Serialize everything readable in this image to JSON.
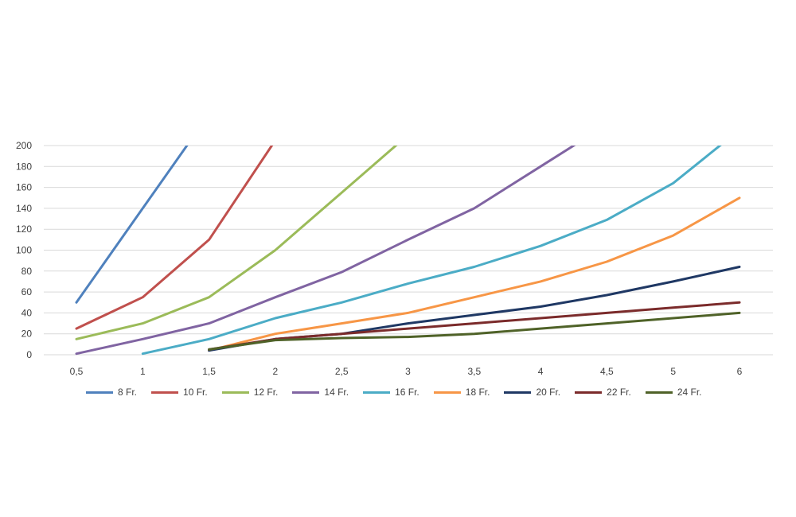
{
  "chart_data": {
    "type": "line",
    "x": [
      "0,5",
      "1",
      "1,5",
      "2",
      "2,5",
      "3",
      "3,5",
      "4",
      "4,5",
      "5",
      "6"
    ],
    "ylim": [
      0,
      200
    ],
    "yticks": [
      "0",
      "20",
      "40",
      "60",
      "80",
      "100",
      "120",
      "140",
      "160",
      "180",
      "200"
    ],
    "grid": true,
    "legend_position": "bottom",
    "series": [
      {
        "name": "8 Fr.",
        "color": "#4F81BD",
        "values": [
          50,
          140,
          230,
          null,
          null,
          null,
          null,
          null,
          null,
          null,
          null
        ]
      },
      {
        "name": "10 Fr.",
        "color": "#C0504D",
        "values": [
          25,
          55,
          110,
          205,
          null,
          null,
          null,
          null,
          null,
          null,
          null
        ]
      },
      {
        "name": "12 Fr.",
        "color": "#9BBB59",
        "values": [
          15,
          30,
          55,
          100,
          155,
          210,
          null,
          null,
          null,
          null,
          null
        ]
      },
      {
        "name": "14 Fr.",
        "color": "#8064A2",
        "values": [
          1,
          15,
          30,
          55,
          79,
          110,
          140,
          180,
          220,
          null,
          null
        ]
      },
      {
        "name": "16 Fr.",
        "color": "#4BACC6",
        "values": [
          null,
          1,
          15,
          35,
          50,
          68,
          84,
          104,
          129,
          164,
          215
        ]
      },
      {
        "name": "18 Fr.",
        "color": "#F79646",
        "values": [
          null,
          null,
          4,
          20,
          30,
          40,
          55,
          70,
          89,
          114,
          150
        ]
      },
      {
        "name": "20 Fr.",
        "color": "#1F3864",
        "values": [
          null,
          null,
          4,
          15,
          20,
          30,
          38,
          46,
          57,
          70,
          84
        ]
      },
      {
        "name": "22 Fr.",
        "color": "#7B2B2B",
        "values": [
          null,
          null,
          5,
          15,
          20,
          25,
          30,
          35,
          40,
          45,
          50
        ]
      },
      {
        "name": "24 Fr.",
        "color": "#4F6228",
        "values": [
          null,
          null,
          5,
          14,
          16,
          17,
          20,
          25,
          30,
          35,
          40
        ]
      }
    ]
  }
}
